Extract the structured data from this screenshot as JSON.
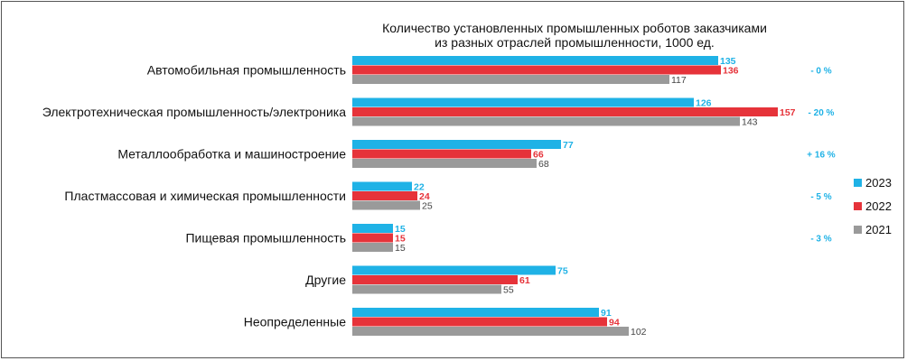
{
  "chart_data": {
    "type": "bar",
    "orientation": "horizontal",
    "title": [
      "Количество установленных промышленных роботов заказчиками",
      "из разных отраслей промышленности, 1000 ед."
    ],
    "categories": [
      "Автомобильная промышленность",
      "Электротехническая промышленность/электроника",
      "Металлообработка и машиностроение",
      "Пластмассовая и химическая промышленности",
      "Пищевая промышленность",
      "Другие",
      "Неопределенные"
    ],
    "series": [
      {
        "name": "2023",
        "color": "#1fb2e6",
        "values": [
          135,
          126,
          77,
          22,
          15,
          75,
          91
        ]
      },
      {
        "name": "2022",
        "color": "#e6333a",
        "values": [
          136,
          157,
          66,
          24,
          15,
          61,
          94
        ]
      },
      {
        "name": "2021",
        "color": "#9a9a9a",
        "values": [
          117,
          143,
          68,
          25,
          15,
          55,
          102
        ]
      }
    ],
    "changes": [
      "- 0 %",
      "- 20 %",
      "+ 16 %",
      "- 5 %",
      "- 3 %"
    ],
    "change_color": "#1fb2e6",
    "xlim": [
      0,
      160
    ],
    "legend_position": "right"
  }
}
